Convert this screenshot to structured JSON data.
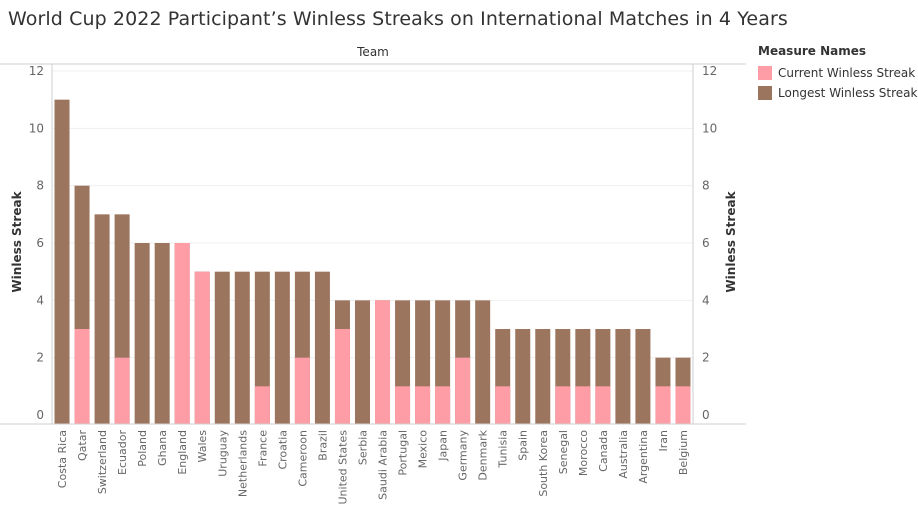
{
  "chart_data": {
    "type": "bar",
    "title": "World Cup 2022 Participant’s Winless Streaks on International Matches in 4 Years",
    "column_header": "Team",
    "ylabel": "Winless Streak",
    "ylim": [
      0,
      12
    ],
    "yticks": [
      0,
      2,
      4,
      6,
      8,
      10,
      12
    ],
    "legend_title": "Measure Names",
    "legend_position": "right",
    "categories": [
      "Costa Rica",
      "Qatar",
      "Switzerland",
      "Ecuador",
      "Poland",
      "Ghana",
      "England",
      "Wales",
      "Uruguay",
      "Netherlands",
      "France",
      "Croatia",
      "Cameroon",
      "Brazil",
      "United States",
      "Serbia",
      "Saudi Arabia",
      "Portugal",
      "Mexico",
      "Japan",
      "Germany",
      "Denmark",
      "Tunisia",
      "Spain",
      "South Korea",
      "Senegal",
      "Morocco",
      "Canada",
      "Australia",
      "Argentina",
      "Iran",
      "Belgium"
    ],
    "series": [
      {
        "name": "Current Winless Streak",
        "color": "#FF9DA7",
        "values": [
          0,
          3,
          0,
          2,
          0,
          0,
          6,
          5,
          0,
          0,
          1,
          0,
          2,
          0,
          3,
          0,
          4,
          1,
          1,
          1,
          2,
          0,
          1,
          0,
          0,
          1,
          1,
          1,
          0,
          0,
          1,
          1
        ]
      },
      {
        "name": "Longest Winless Streak",
        "color": "#9C755F",
        "values": [
          11,
          8,
          7,
          7,
          6,
          6,
          6,
          5,
          5,
          5,
          5,
          5,
          5,
          5,
          4,
          4,
          4,
          4,
          4,
          4,
          4,
          4,
          3,
          3,
          3,
          3,
          3,
          3,
          3,
          3,
          2,
          2
        ]
      }
    ]
  }
}
